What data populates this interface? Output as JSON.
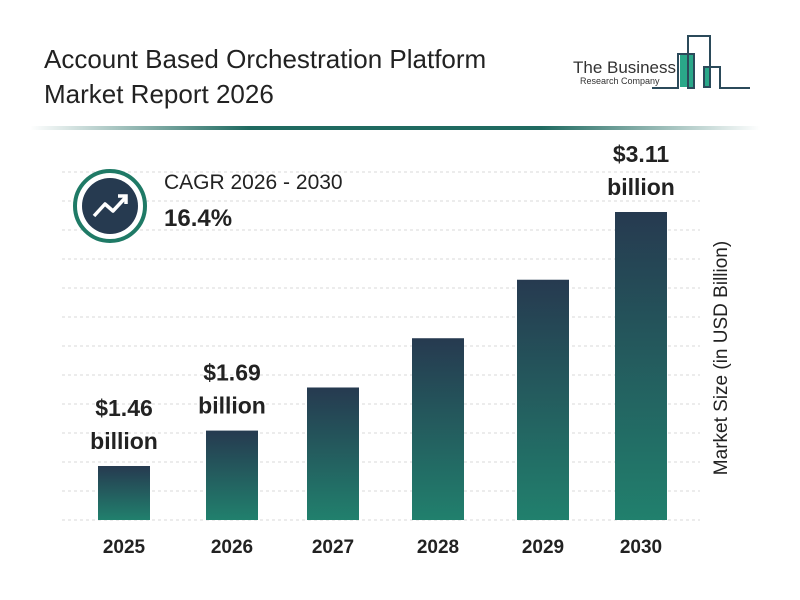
{
  "header": {
    "title_line1": "Account Based Orchestration Platform",
    "title_line2": "Market Report 2026"
  },
  "logo": {
    "line1": "The Business",
    "line2": "Research Company"
  },
  "cagr": {
    "label": "CAGR 2026 - 2030",
    "value": "16.4%",
    "icon": "trending-up-icon"
  },
  "colors": {
    "bar_top": "#263a50",
    "bar_bottom": "#21806d",
    "accent": "#1f6a60"
  },
  "chart_data": {
    "type": "bar",
    "categories": [
      "2025",
      "2026",
      "2027",
      "2028",
      "2029",
      "2030"
    ],
    "values": [
      1.46,
      1.69,
      1.97,
      2.29,
      2.67,
      3.11
    ],
    "data_labels": [
      {
        "index": 0,
        "value": "$1.46",
        "unit": "billion"
      },
      {
        "index": 1,
        "value": "$1.69",
        "unit": "billion"
      },
      {
        "index": 5,
        "value": "$3.11",
        "unit": "billion"
      }
    ],
    "title": "",
    "xlabel": "",
    "ylabel": "Market Size (in USD Billion)",
    "grid": true
  }
}
